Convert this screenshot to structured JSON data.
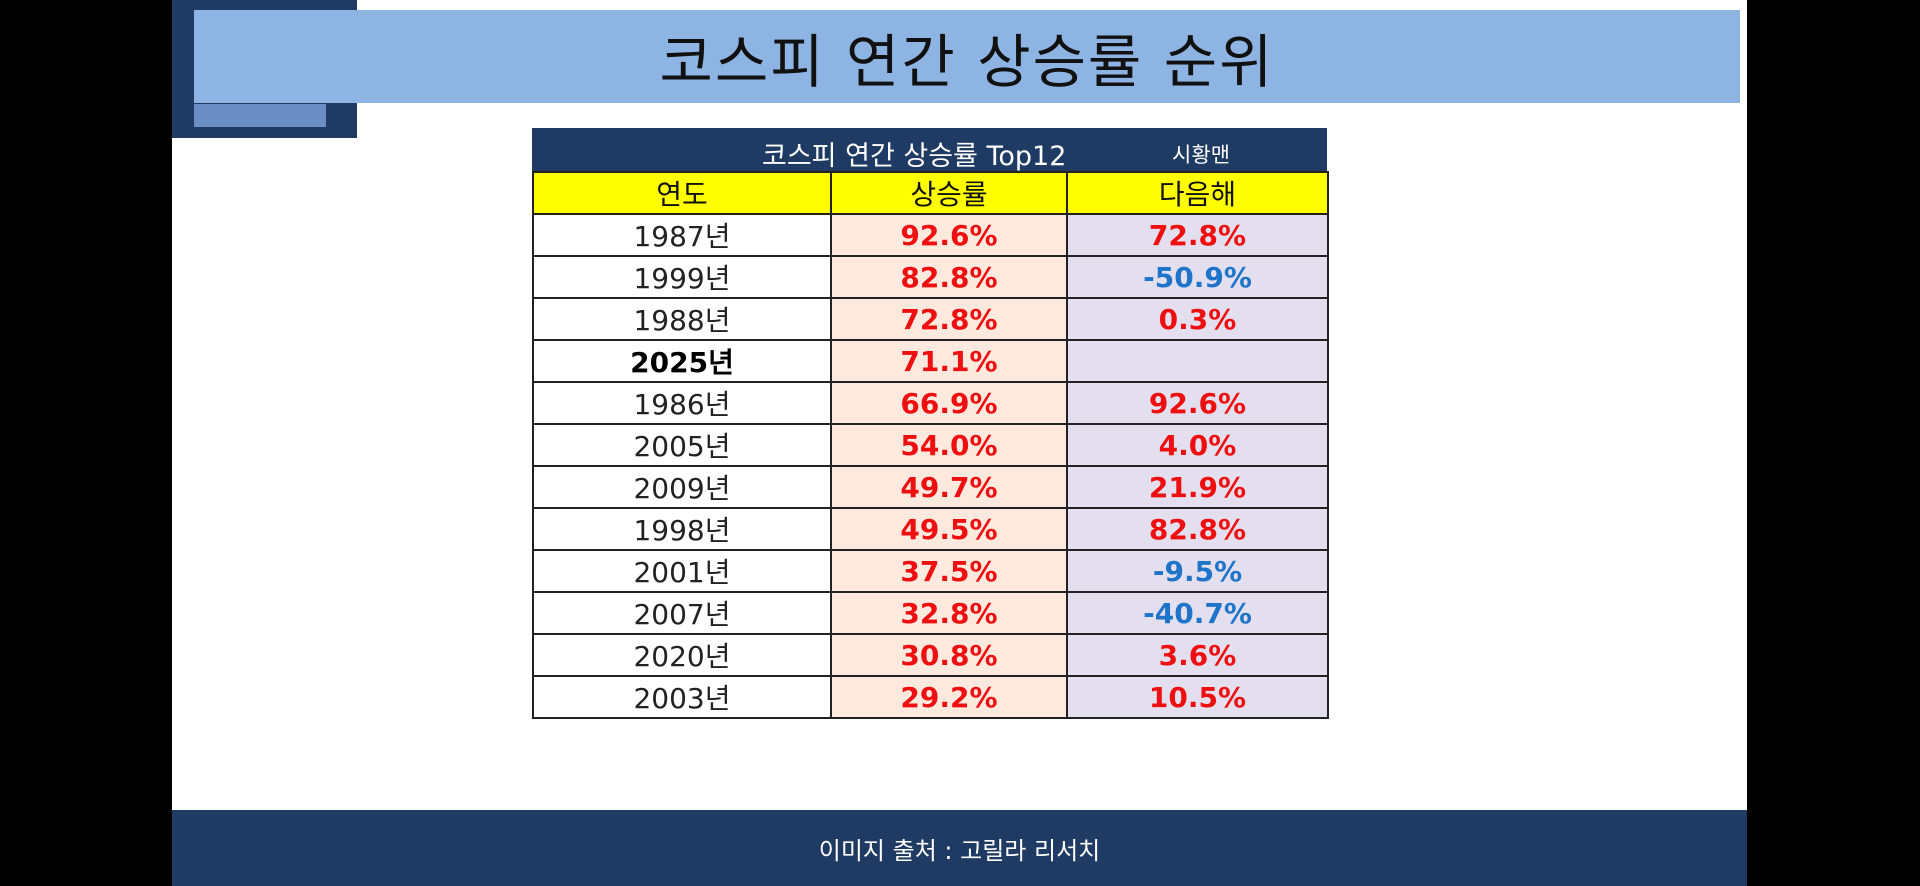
{
  "slide": {
    "title": "코스피 연간 상승률 순위",
    "footer": "이미지 출처 : 고릴라 리서치"
  },
  "table": {
    "caption": "코스피 연간 상승률 Top12",
    "author": "시황맨",
    "headers": [
      "연도",
      "상승률",
      "다음해"
    ],
    "rows": [
      {
        "year": "1987년",
        "rise": "92.6%",
        "next": "72.8%"
      },
      {
        "year": "1999년",
        "rise": "82.8%",
        "next": "-50.9%"
      },
      {
        "year": "1988년",
        "rise": "72.8%",
        "next": "0.3%"
      },
      {
        "year": "2025년",
        "rise": "71.1%",
        "next": ""
      },
      {
        "year": "1986년",
        "rise": "66.9%",
        "next": "92.6%"
      },
      {
        "year": "2005년",
        "rise": "54.0%",
        "next": "4.0%"
      },
      {
        "year": "2009년",
        "rise": "49.7%",
        "next": "21.9%"
      },
      {
        "year": "1998년",
        "rise": "49.5%",
        "next": "82.8%"
      },
      {
        "year": "2001년",
        "rise": "37.5%",
        "next": "-9.5%"
      },
      {
        "year": "2007년",
        "rise": "32.8%",
        "next": "-40.7%"
      },
      {
        "year": "2020년",
        "rise": "30.8%",
        "next": "3.6%"
      },
      {
        "year": "2003년",
        "rise": "29.2%",
        "next": "10.5%"
      }
    ]
  },
  "colors": {
    "navy": "#1f3a63",
    "title_band": "#8eb4e3",
    "header_yellow": "#ffff00",
    "positive_red": "#ee1010",
    "negative_blue": "#1e74c9"
  }
}
